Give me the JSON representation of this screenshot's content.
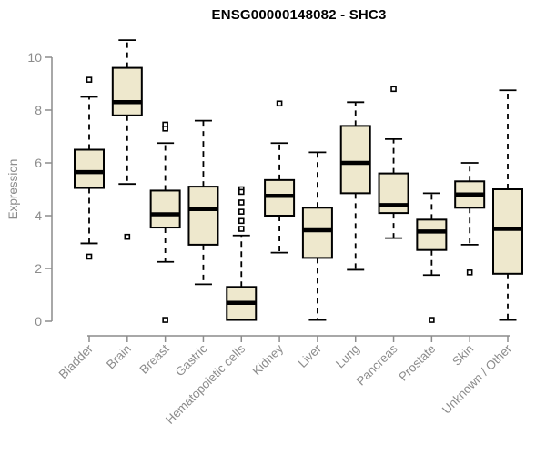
{
  "chart_data": {
    "type": "boxplot",
    "title": "ENSG00000148082 - SHC3",
    "ylabel": "Expression",
    "xlabel": "",
    "ylim": [
      0,
      10.7
    ],
    "yticks": [
      0,
      2,
      4,
      6,
      8,
      10
    ],
    "grid": false,
    "legend": "none",
    "box_fill": "#EEE8CD",
    "box_stroke": "#000000",
    "axis_color": "#8C8C8C",
    "label_color": "#8C8C8C",
    "title_color": "#000000",
    "categories": [
      "Bladder",
      "Brain",
      "Breast",
      "Gastric",
      "Hematopoietic cells",
      "Kidney",
      "Liver",
      "Lung",
      "Pancreas",
      "Prostate",
      "Skin",
      "Unknown / Other"
    ],
    "series": [
      {
        "name": "Bladder",
        "whisker_low": 2.95,
        "q1": 5.05,
        "median": 5.65,
        "q3": 6.5,
        "whisker_high": 8.5,
        "outliers": [
          9.15,
          2.45
        ]
      },
      {
        "name": "Brain",
        "whisker_low": 5.2,
        "q1": 7.8,
        "median": 8.3,
        "q3": 9.6,
        "whisker_high": 10.65,
        "outliers": [
          3.2
        ]
      },
      {
        "name": "Breast",
        "whisker_low": 2.25,
        "q1": 3.55,
        "median": 4.05,
        "q3": 4.95,
        "whisker_high": 6.75,
        "outliers": [
          7.45,
          7.3,
          0.05
        ]
      },
      {
        "name": "Gastric",
        "whisker_low": 1.4,
        "q1": 2.9,
        "median": 4.25,
        "q3": 5.1,
        "whisker_high": 7.6,
        "outliers": []
      },
      {
        "name": "Hematopoietic cells",
        "whisker_low": 0.05,
        "q1": 0.05,
        "median": 0.7,
        "q3": 1.3,
        "whisker_high": 3.25,
        "outliers": [
          5.0,
          4.9,
          4.5,
          4.15,
          3.8,
          3.5
        ]
      },
      {
        "name": "Kidney",
        "whisker_low": 2.6,
        "q1": 4.0,
        "median": 4.75,
        "q3": 5.35,
        "whisker_high": 6.75,
        "outliers": [
          8.25
        ]
      },
      {
        "name": "Liver",
        "whisker_low": 0.05,
        "q1": 2.4,
        "median": 3.45,
        "q3": 4.3,
        "whisker_high": 6.4,
        "outliers": []
      },
      {
        "name": "Lung",
        "whisker_low": 1.95,
        "q1": 4.85,
        "median": 6.0,
        "q3": 7.4,
        "whisker_high": 8.3,
        "outliers": []
      },
      {
        "name": "Pancreas",
        "whisker_low": 3.15,
        "q1": 4.1,
        "median": 4.4,
        "q3": 5.6,
        "whisker_high": 6.9,
        "outliers": [
          8.8
        ]
      },
      {
        "name": "Prostate",
        "whisker_low": 1.75,
        "q1": 2.7,
        "median": 3.4,
        "q3": 3.85,
        "whisker_high": 4.85,
        "outliers": [
          0.05
        ]
      },
      {
        "name": "Skin",
        "whisker_low": 2.9,
        "q1": 4.3,
        "median": 4.8,
        "q3": 5.3,
        "whisker_high": 6.0,
        "outliers": [
          1.85
        ]
      },
      {
        "name": "Unknown / Other",
        "whisker_low": 0.05,
        "q1": 1.8,
        "median": 3.5,
        "q3": 5.0,
        "whisker_high": 8.75,
        "outliers": []
      }
    ]
  }
}
